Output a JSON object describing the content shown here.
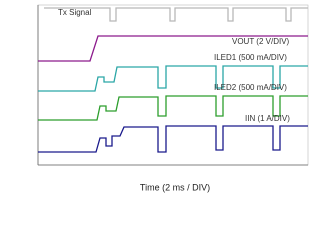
{
  "scope": {
    "labels": {
      "tx": "Tx Signal",
      "vout": "VOUT (2 V/DIV)",
      "iled1": "ILED1 (500 mA/DIV)",
      "iled2": "ILED2 (500 mA/DIV)",
      "iin": "IIN (1 A/DIV)"
    },
    "x_label": "Time (2 ms / DIV)"
  }
}
